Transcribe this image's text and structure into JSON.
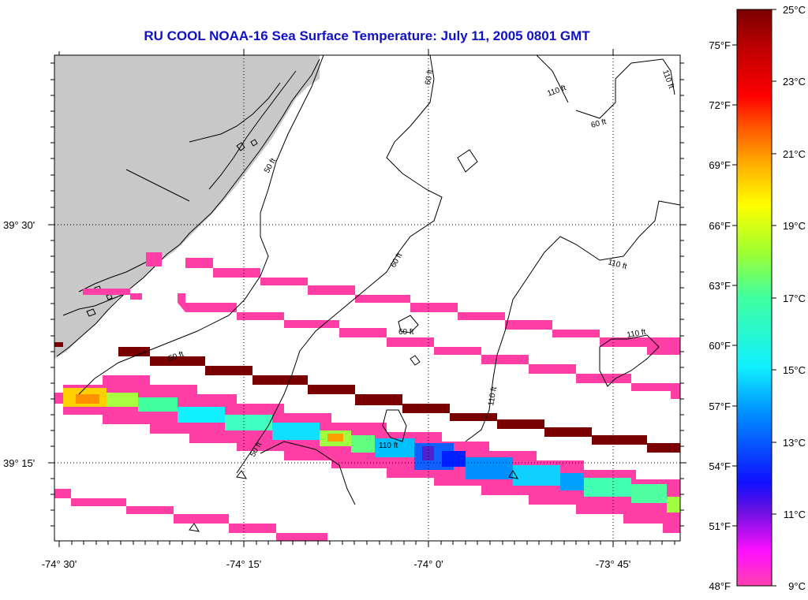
{
  "title": "RU COOL  NOAA-16  Sea Surface Temperature:  July 11, 2005 0801 GMT",
  "map": {
    "lat_labels": [
      "39° 30'",
      "39° 15'"
    ],
    "lon_labels": [
      "-74° 30'",
      "-74° 15'",
      "-74° 0'",
      "-73° 45'"
    ],
    "contour_labels": [
      "50 ft",
      "60 ft",
      "110 ft"
    ],
    "land_color": "#c8c8c8",
    "grid": "dotted"
  },
  "colorbar": {
    "celsius_labels": [
      "25°C",
      "23°C",
      "21°C",
      "19°C",
      "17°C",
      "15°C",
      "13°C",
      "11°C",
      "9°C"
    ],
    "fahrenheit_labels": [
      "75°F",
      "72°F",
      "69°F",
      "66°F",
      "63°F",
      "60°F",
      "57°F",
      "54°F",
      "51°F",
      "48°F"
    ],
    "colors": [
      "#ff20c8",
      "#ff10ff",
      "#7a10d0",
      "#1010ff",
      "#00a0ff",
      "#10ffff",
      "#40ffa0",
      "#a0ff30",
      "#ffff00",
      "#ffa000",
      "#ff4000",
      "#ff0000",
      "#c00000",
      "#800000"
    ]
  }
}
